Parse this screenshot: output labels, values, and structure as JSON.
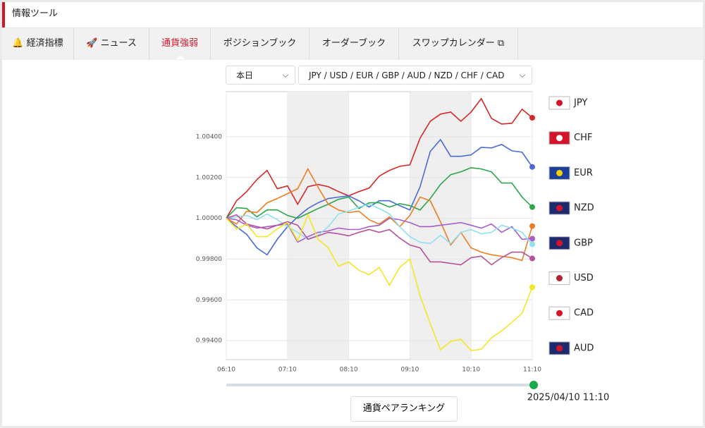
{
  "header": {
    "title": "情報ツール"
  },
  "tabs": [
    "経済指標",
    "ニュース",
    "通貨強弱",
    "ポジションブック",
    "オーダーブック",
    "スワップカレンダー"
  ],
  "filters": {
    "period": "本日",
    "currencies": "JPY / USD / EUR / GBP / AUD / NZD / CHF / CAD"
  },
  "chart_data": {
    "type": "line",
    "categories": [
      "06:10",
      null,
      null,
      null,
      null,
      null,
      "07:10",
      null,
      null,
      null,
      null,
      null,
      "08:10",
      null,
      null,
      null,
      null,
      null,
      "09:10",
      null,
      null,
      null,
      null,
      null,
      "10:10",
      null,
      null,
      null,
      null,
      null,
      "11:10"
    ],
    "ylim": [
      0.99307,
      1.00621
    ],
    "yticks": [
      {
        "value": 0.994,
        "label": "0.99400"
      },
      {
        "value": 0.996,
        "label": "0.99600"
      },
      {
        "value": 0.998,
        "label": "0.99800"
      },
      {
        "value": 1.0,
        "label": "1.00000"
      },
      {
        "value": 1.002,
        "label": "1.00200"
      },
      {
        "value": 1.004,
        "label": "1.00400"
      }
    ],
    "grid": true,
    "series": [
      {
        "name": "JPY",
        "color": "#d62728",
        "values": [
          1.0,
          1.00086,
          1.00131,
          1.0019,
          1.00235,
          1.00145,
          1.00159,
          1.00069,
          1.00155,
          1.00166,
          1.00155,
          1.00131,
          1.0011,
          1.00131,
          1.00148,
          1.00207,
          1.00235,
          1.00255,
          1.00262,
          1.00393,
          1.00476,
          1.00511,
          1.00521,
          1.00476,
          1.00521,
          1.00587,
          1.0049,
          1.00462,
          1.00466,
          1.00535,
          1.00493
        ]
      },
      {
        "name": "CHF",
        "color": "#4a6bd6",
        "values": [
          1.0,
          0.99959,
          0.99921,
          0.99855,
          0.99821,
          0.99897,
          0.99959,
          1.00007,
          1.00048,
          1.00076,
          1.00097,
          1.00104,
          1.0011,
          1.00086,
          1.00055,
          1.00086,
          1.00086,
          1.00062,
          1.00041,
          1.00155,
          1.00328,
          1.00386,
          1.00304,
          1.00304,
          1.00311,
          1.00348,
          1.00345,
          1.00362,
          1.00331,
          1.00324,
          1.00252
        ]
      },
      {
        "name": "EUR",
        "color": "#2ca54a",
        "values": [
          1.0,
          1.00052,
          1.00048,
          1.00007,
          1.00041,
          1.00041,
          1.00014,
          1.0,
          1.00024,
          1.00048,
          1.00069,
          1.00093,
          1.00104,
          1.00048,
          1.00076,
          1.00076,
          1.00055,
          1.00072,
          1.00062,
          1.00041,
          1.00097,
          1.00166,
          1.00214,
          1.00228,
          1.00248,
          1.00242,
          1.00228,
          1.00173,
          1.00173,
          1.00104,
          1.00055
        ]
      },
      {
        "name": "NZD",
        "color": "#ee7d22",
        "values": [
          1.0,
          0.99972,
          1.00035,
          1.00028,
          1.00076,
          1.00097,
          1.00121,
          1.00145,
          1.00242,
          1.00152,
          1.00069,
          1.00041,
          1.00028,
          1.00035,
          0.99993,
          0.99972,
          1.00007,
          0.99959,
          1.00014,
          1.00104,
          1.00086,
          0.99983,
          0.99869,
          0.99931,
          0.99855,
          0.99834,
          0.99821,
          0.99814,
          0.99807,
          0.99793,
          0.99962
        ]
      },
      {
        "name": "GBP",
        "color": "#a45fc9",
        "values": [
          1.0,
          0.99993,
          0.99966,
          0.99952,
          0.99959,
          0.99966,
          0.99972,
          0.99883,
          0.9991,
          0.99931,
          0.99938,
          0.99952,
          0.99945,
          0.99945,
          0.99959,
          0.99966,
          1.0,
          0.99993,
          0.99979,
          0.99959,
          0.99959,
          0.99966,
          0.99972,
          0.99979,
          0.99966,
          0.99952,
          0.99972,
          0.99931,
          0.99959,
          0.99897,
          0.999
        ]
      },
      {
        "name": "USD",
        "color": "#8fe0f0",
        "values": [
          1.0,
          1.00007,
          1.00014,
          0.99993,
          1.00021,
          0.99993,
          0.99959,
          0.99931,
          0.99897,
          0.99917,
          0.99959,
          1.00021,
          1.00035,
          1.00055,
          1.00069,
          1.00048,
          1.00021,
          0.99959,
          0.9991,
          0.99883,
          0.99876,
          0.99917,
          0.99876,
          0.99931,
          0.99945,
          0.99924,
          0.99931,
          0.99966,
          0.99952,
          0.99931,
          0.99872
        ]
      },
      {
        "name": "CAD",
        "color": "#b5509a",
        "values": [
          1.0,
          1.00017,
          0.99972,
          0.99959,
          0.99948,
          0.99966,
          0.99983,
          0.99966,
          0.99897,
          0.99914,
          0.99931,
          0.99924,
          0.99914,
          0.99931,
          0.99945,
          0.99931,
          0.99945,
          0.99903,
          0.99869,
          0.99855,
          0.99786,
          0.99786,
          0.99779,
          0.99772,
          0.99807,
          0.99814,
          0.99772,
          0.99807,
          0.99834,
          0.99834,
          0.99803
        ]
      },
      {
        "name": "AUD",
        "color": "#f5e625",
        "values": [
          1.0,
          0.99948,
          0.99972,
          0.9991,
          0.9991,
          0.99948,
          0.99979,
          0.9989,
          1.00017,
          0.99897,
          0.99855,
          0.99765,
          0.99786,
          0.99745,
          0.99724,
          0.99759,
          0.99672,
          0.99759,
          0.998,
          0.99621,
          0.99483,
          0.99355,
          0.99396,
          0.99407,
          0.99351,
          0.99358,
          0.99414,
          0.99448,
          0.9949,
          0.99534,
          0.99662
        ]
      }
    ]
  },
  "slider": {
    "label": "2025/04/10 11:10"
  },
  "button": "通貨ペアランキング"
}
